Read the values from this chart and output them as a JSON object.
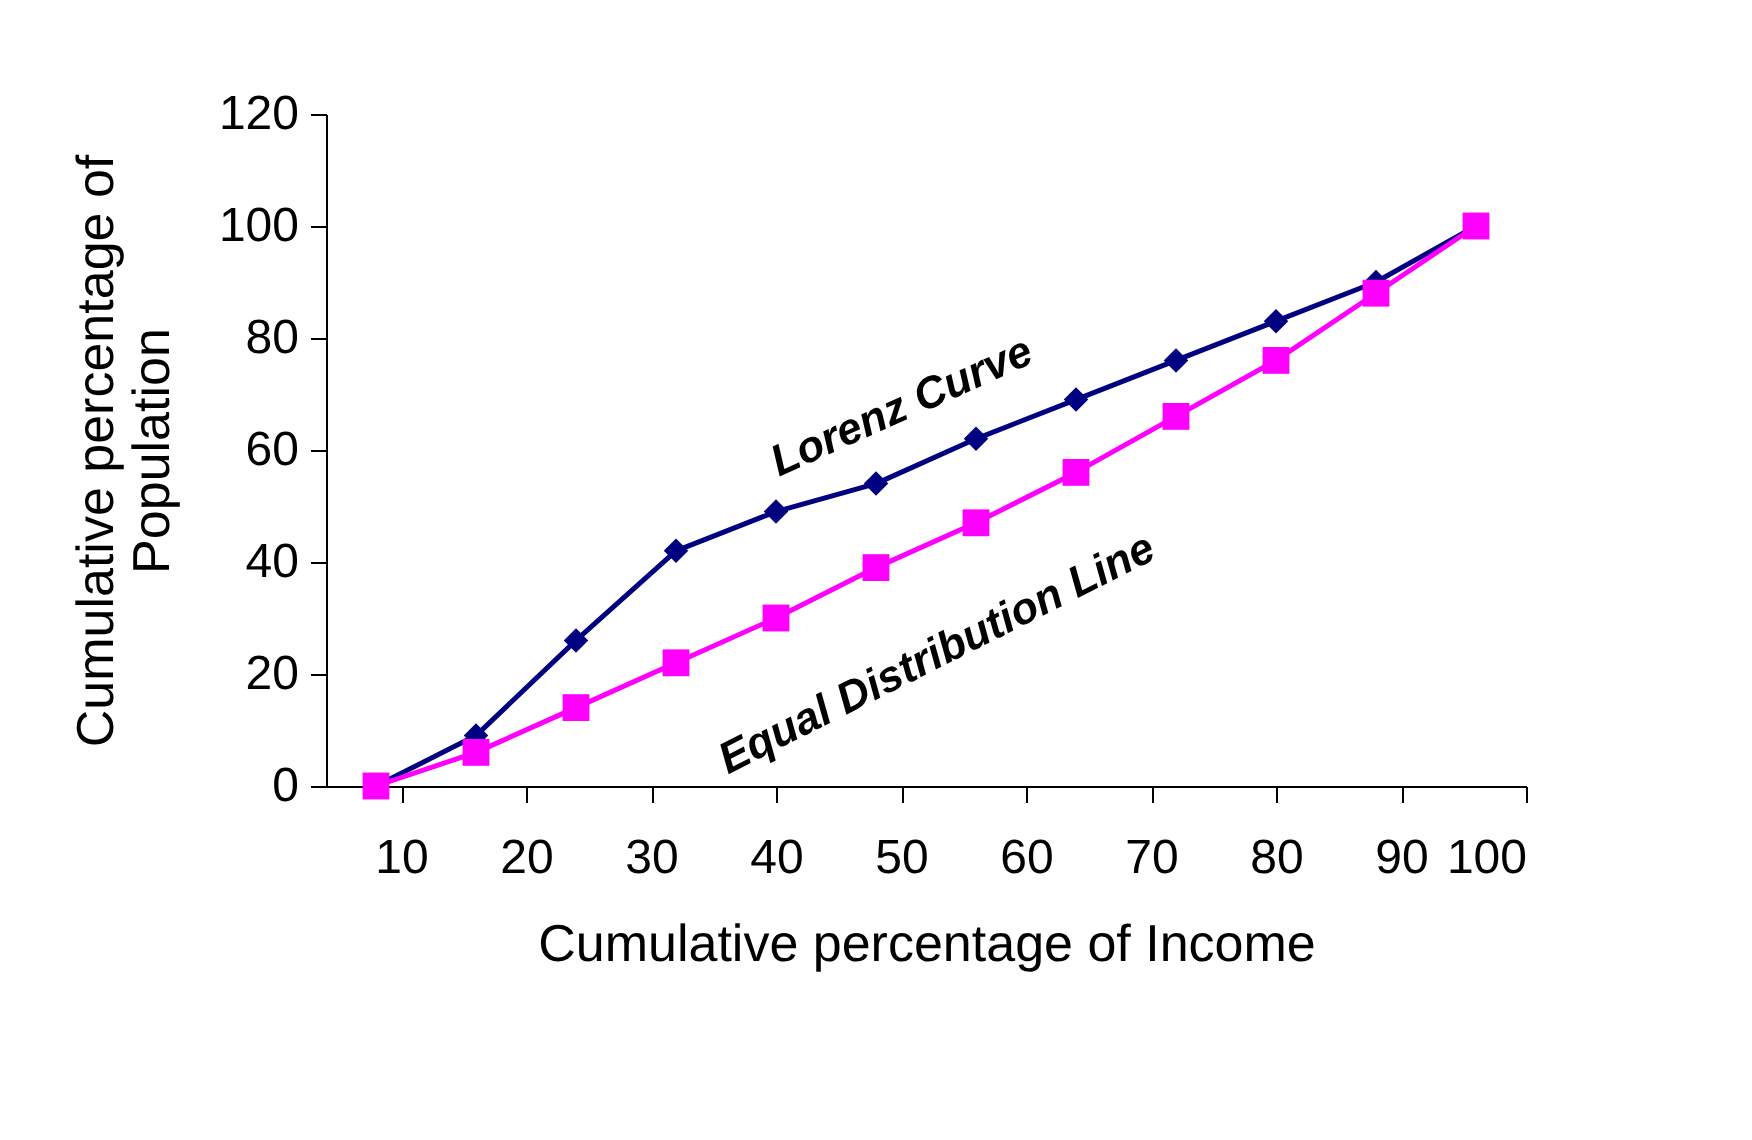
{
  "chart_data": {
    "type": "line",
    "xlabel": "Cumulative percentage of Income",
    "ylabel": "Cumulative percentage of Population",
    "x": [
      8,
      16,
      24,
      32,
      40,
      48,
      56,
      64,
      72,
      80,
      88,
      96
    ],
    "series": [
      {
        "name": "Lorenz Curve",
        "color": "#000080",
        "marker": "diamond",
        "values": [
          0,
          9,
          26,
          42,
          49,
          54,
          62,
          69,
          76,
          83,
          90,
          100
        ]
      },
      {
        "name": "Equal Distribution Line",
        "color": "#ff00ff",
        "marker": "square",
        "values": [
          0,
          6,
          14,
          22,
          30,
          39,
          47,
          56,
          66,
          76,
          88,
          100
        ]
      }
    ],
    "xlim": [
      4,
      100
    ],
    "xticks": [
      10,
      20,
      30,
      40,
      50,
      60,
      70,
      80,
      90,
      100
    ],
    "ylim": [
      0,
      120
    ],
    "yticks": [
      0,
      20,
      40,
      60,
      80,
      100,
      120
    ],
    "grid": false
  }
}
